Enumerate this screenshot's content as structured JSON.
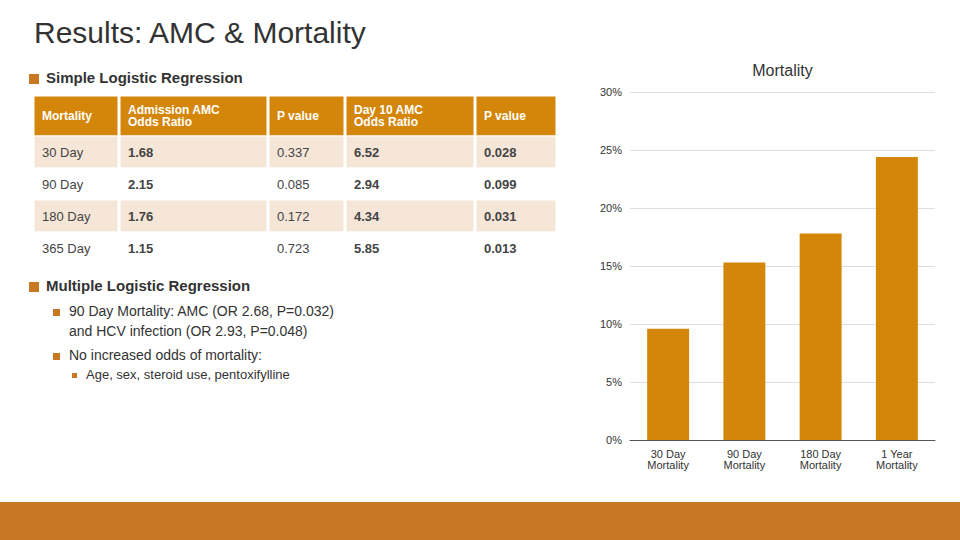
{
  "title": "Results: AMC & Mortality",
  "sections": [
    {
      "heading": "Simple Logistic Regression",
      "table": {
        "headers": [
          "Mortality",
          "Admission AMC\nOdds Ratio",
          "P value",
          "Day 10 AMC\nOdds Ratio",
          "P value"
        ],
        "rows": [
          [
            "30 Day",
            "1.68",
            "0.337",
            "6.52",
            "0.028"
          ],
          [
            "90 Day",
            "2.15",
            "0.085",
            "2.94",
            "0.099"
          ],
          [
            "180 Day",
            "1.76",
            "0.172",
            "4.34",
            "0.031"
          ],
          [
            "365 Day",
            "1.15",
            "0.723",
            "5.85",
            "0.013"
          ]
        ]
      }
    },
    {
      "heading": "Multiple Logistic Regression",
      "bullets": [
        {
          "lines": [
            "90 Day Mortality: AMC (OR 2.68, P=0.032)",
            "and HCV infection (OR 2.93, P=0.048)"
          ]
        },
        {
          "lines": [
            "No increased odds of mortality:"
          ],
          "sub": [
            "Age, sex, steroid use, pentoxifylline"
          ]
        }
      ]
    }
  ],
  "chart_data": {
    "type": "bar",
    "title": "Mortality",
    "categories": [
      "30 Day\nMortality",
      "90 Day\nMortality",
      "180 Day\nMortality",
      "1 Year\nMortality"
    ],
    "values": [
      0.096,
      0.153,
      0.178,
      0.244
    ],
    "color": "#d4860a",
    "ylim": [
      0,
      0.3
    ],
    "yticks": [
      {
        "value": 0.0,
        "label": "0%"
      },
      {
        "value": 0.05,
        "label": "5%"
      },
      {
        "value": 0.1,
        "label": "10%"
      },
      {
        "value": 0.15,
        "label": "15%"
      },
      {
        "value": 0.2,
        "label": "20%"
      },
      {
        "value": 0.25,
        "label": "25%"
      },
      {
        "value": 0.3,
        "label": "30%"
      }
    ],
    "grid": true
  }
}
